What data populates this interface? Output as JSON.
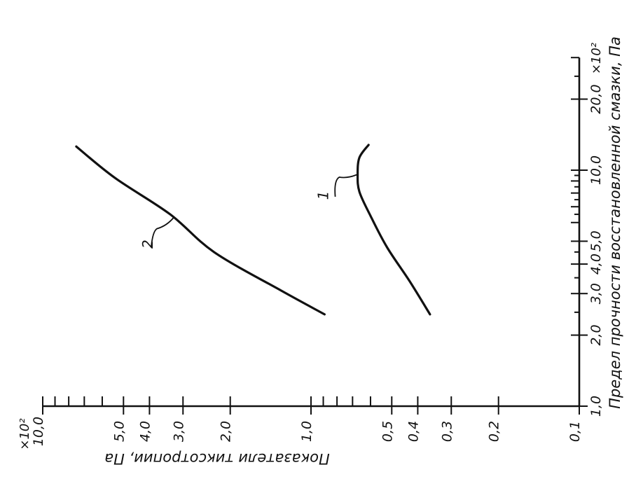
{
  "chart_data": {
    "type": "line",
    "scale": "log-log",
    "xlabel": "Предел прочности восстановленной смазки, Па",
    "ylabel": "Показатели тиксотропии, Па",
    "x_multiplier": "×10²",
    "y_multiplier": "×10²",
    "xlim": [
      1.0,
      30.0
    ],
    "ylim": [
      0.1,
      10.0
    ],
    "x_ticks": [
      {
        "value": 1.0,
        "label": "1,0"
      },
      {
        "value": 2.0,
        "label": "2,0"
      },
      {
        "value": 3.0,
        "label": "3,0"
      },
      {
        "value": 4.0,
        "label": "4,0"
      },
      {
        "value": 5.0,
        "label": "5,0"
      },
      {
        "value": 10.0,
        "label": "10,0"
      },
      {
        "value": 20.0,
        "label": "20,0"
      }
    ],
    "y_ticks": [
      {
        "value": 0.1,
        "label": "0,1"
      },
      {
        "value": 0.2,
        "label": "0,2"
      },
      {
        "value": 0.3,
        "label": "0,3"
      },
      {
        "value": 0.4,
        "label": "0,4"
      },
      {
        "value": 0.5,
        "label": "0,5"
      },
      {
        "value": 1.0,
        "label": "1,0"
      },
      {
        "value": 2.0,
        "label": "2,0"
      },
      {
        "value": 3.0,
        "label": "3,0"
      },
      {
        "value": 4.0,
        "label": "4,0"
      },
      {
        "value": 5.0,
        "label": "5,0"
      },
      {
        "value": 10.0,
        "label": "10,0"
      }
    ],
    "series": [
      {
        "name": "1",
        "x": [
          2.45,
          3.4,
          4.7,
          6.4,
          8.1,
          9.6,
          11.3,
          12.8
        ],
        "y": [
          0.36,
          0.43,
          0.52,
          0.6,
          0.66,
          0.67,
          0.66,
          0.61
        ]
      },
      {
        "name": "2",
        "x": [
          2.45,
          3.1,
          4.5,
          6.5,
          9.3,
          12.6
        ],
        "y": [
          0.89,
          1.3,
          2.3,
          3.35,
          5.4,
          7.5
        ]
      }
    ]
  }
}
